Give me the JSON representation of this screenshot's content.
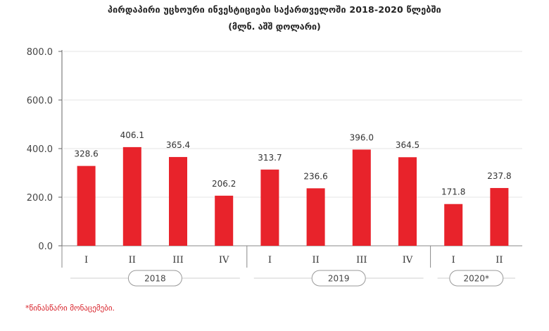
{
  "chart_data": {
    "type": "bar",
    "title": "პირდაპირი უცხოური ინვესტიციები საქართველოში 2018-2020 წლებში",
    "subtitle": "(მლნ. აშშ დოლარი)",
    "categories": [
      "I",
      "II",
      "III",
      "IV",
      "I",
      "II",
      "III",
      "IV",
      "I",
      "II"
    ],
    "groups": [
      {
        "label": "2018",
        "count": 4
      },
      {
        "label": "2019",
        "count": 4
      },
      {
        "label": "2020*",
        "count": 2
      }
    ],
    "series": [
      {
        "values": [
          328.6,
          406.1,
          365.4,
          206.2,
          313.7,
          236.6,
          396.0,
          364.5,
          171.8,
          237.8
        ]
      }
    ],
    "value_labels": [
      "328.6",
      "406.1",
      "365.4",
      "206.2",
      "313.7",
      "236.6",
      "396.0",
      "364.5",
      "171.8",
      "237.8"
    ],
    "yticks": [
      "0.0",
      "200.0",
      "400.0",
      "600.0",
      "800.0"
    ],
    "ylim": [
      0,
      800
    ],
    "xlabel": "",
    "ylabel": "",
    "grid": true,
    "bar_color": "#e8232b",
    "grid_color": "#e6e6e6"
  },
  "footnote": "*წინასწარი მონაცემები."
}
